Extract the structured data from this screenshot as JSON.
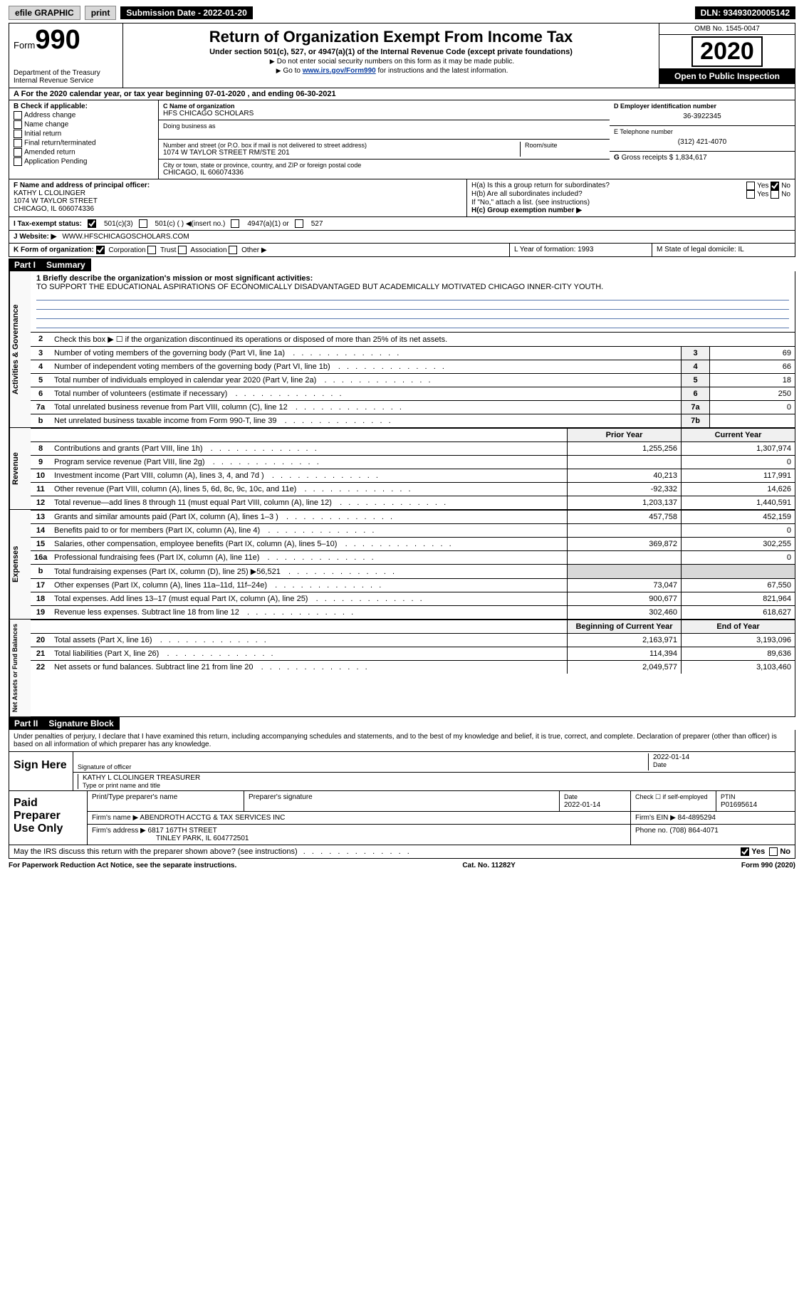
{
  "topbar": {
    "efile": "efile GRAPHIC",
    "print": "print",
    "subdate_label": "Submission Date - 2022-01-20",
    "dln": "DLN: 93493020005142"
  },
  "header": {
    "form_label": "Form",
    "form_number": "990",
    "dept": "Department of the Treasury",
    "irs": "Internal Revenue Service",
    "title": "Return of Organization Exempt From Income Tax",
    "subtitle": "Under section 501(c), 527, or 4947(a)(1) of the Internal Revenue Code (except private foundations)",
    "note1": "Do not enter social security numbers on this form as it may be made public.",
    "note2_pre": "Go to ",
    "note2_link": "www.irs.gov/Form990",
    "note2_post": " for instructions and the latest information.",
    "omb": "OMB No. 1545-0047",
    "year": "2020",
    "inspect": "Open to Public Inspection"
  },
  "lineA": "For the 2020 calendar year, or tax year beginning 07-01-2020   , and ending 06-30-2021",
  "boxB": {
    "label": "B Check if applicable:",
    "opts": [
      "Address change",
      "Name change",
      "Initial return",
      "Final return/terminated",
      "Amended return",
      "Application Pending"
    ]
  },
  "boxC": {
    "label": "C Name of organization",
    "name": "HFS CHICAGO SCHOLARS",
    "dba_label": "Doing business as",
    "addr_label": "Number and street (or P.O. box if mail is not delivered to street address)",
    "addr": "1074 W TAYLOR STREET RM/STE 201",
    "room_label": "Room/suite",
    "city_label": "City or town, state or province, country, and ZIP or foreign postal code",
    "city": "CHICAGO, IL  606074336"
  },
  "boxD": {
    "label": "D Employer identification number",
    "value": "36-3922345"
  },
  "boxE": {
    "label": "E Telephone number",
    "value": "(312) 421-4070"
  },
  "boxG": {
    "label": "G",
    "text": "Gross receipts $ 1,834,617"
  },
  "boxF": {
    "label": "F  Name and address of principal officer:",
    "name": "KATHY L CLOLINGER",
    "addr1": "1074 W TAYLOR STREET",
    "addr2": "CHICAGO, IL  606074336"
  },
  "boxH": {
    "a_label": "H(a)  Is this a group return for subordinates?",
    "b_label": "H(b)  Are all subordinates included?",
    "b_note": "If \"No,\" attach a list. (see instructions)",
    "c_label": "H(c)  Group exemption number ▶",
    "yes": "Yes",
    "no": "No"
  },
  "lineI": {
    "label": "I     Tax-exempt status:",
    "o1": "501(c)(3)",
    "o2": "501(c) (  ) ◀(insert no.)",
    "o3": "4947(a)(1) or",
    "o4": "527"
  },
  "lineJ": {
    "label": "J    Website: ▶",
    "value": "WWW.HFSCHICAGOSCHOLARS.COM"
  },
  "lineK": {
    "label": "K Form of organization:",
    "opts": [
      "Corporation",
      "Trust",
      "Association",
      "Other ▶"
    ]
  },
  "lineL": {
    "label": "L Year of formation: 1993"
  },
  "lineM": {
    "label": "M State of legal domicile: IL"
  },
  "part1": {
    "label": "Part I",
    "title": "Summary"
  },
  "mission": {
    "label": "1   Briefly describe the organization's mission or most significant activities:",
    "text": "TO SUPPORT THE EDUCATIONAL ASPIRATIONS OF ECONOMICALLY DISADVANTAGED BUT ACADEMICALLY MOTIVATED CHICAGO INNER-CITY YOUTH."
  },
  "line2": "Check this box ▶ ☐  if the organization discontinued its operations or disposed of more than 25% of its net assets.",
  "gov_lines": [
    {
      "n": "3",
      "txt": "Number of voting members of the governing body (Part VI, line 1a)",
      "box": "3",
      "v": "69"
    },
    {
      "n": "4",
      "txt": "Number of independent voting members of the governing body (Part VI, line 1b)",
      "box": "4",
      "v": "66"
    },
    {
      "n": "5",
      "txt": "Total number of individuals employed in calendar year 2020 (Part V, line 2a)",
      "box": "5",
      "v": "18"
    },
    {
      "n": "6",
      "txt": "Total number of volunteers (estimate if necessary)",
      "box": "6",
      "v": "250"
    },
    {
      "n": "7a",
      "txt": "Total unrelated business revenue from Part VIII, column (C), line 12",
      "box": "7a",
      "v": "0"
    },
    {
      "n": "b",
      "txt": "Net unrelated business taxable income from Form 990-T, line 39",
      "box": "7b",
      "v": ""
    }
  ],
  "finhdr": {
    "prior": "Prior Year",
    "current": "Current Year"
  },
  "revenue": [
    {
      "n": "8",
      "txt": "Contributions and grants (Part VIII, line 1h)",
      "p": "1,255,256",
      "c": "1,307,974"
    },
    {
      "n": "9",
      "txt": "Program service revenue (Part VIII, line 2g)",
      "p": "",
      "c": "0"
    },
    {
      "n": "10",
      "txt": "Investment income (Part VIII, column (A), lines 3, 4, and 7d )",
      "p": "40,213",
      "c": "117,991"
    },
    {
      "n": "11",
      "txt": "Other revenue (Part VIII, column (A), lines 5, 6d, 8c, 9c, 10c, and 11e)",
      "p": "-92,332",
      "c": "14,626"
    },
    {
      "n": "12",
      "txt": "Total revenue—add lines 8 through 11 (must equal Part VIII, column (A), line 12)",
      "p": "1,203,137",
      "c": "1,440,591"
    }
  ],
  "expenses": [
    {
      "n": "13",
      "txt": "Grants and similar amounts paid (Part IX, column (A), lines 1–3 )",
      "p": "457,758",
      "c": "452,159"
    },
    {
      "n": "14",
      "txt": "Benefits paid to or for members (Part IX, column (A), line 4)",
      "p": "",
      "c": "0"
    },
    {
      "n": "15",
      "txt": "Salaries, other compensation, employee benefits (Part IX, column (A), lines 5–10)",
      "p": "369,872",
      "c": "302,255"
    },
    {
      "n": "16a",
      "txt": "Professional fundraising fees (Part IX, column (A), line 11e)",
      "p": "",
      "c": "0"
    },
    {
      "n": "b",
      "txt": "Total fundraising expenses (Part IX, column (D), line 25) ▶56,521",
      "p": "shade",
      "c": "shade"
    },
    {
      "n": "17",
      "txt": "Other expenses (Part IX, column (A), lines 11a–11d, 11f–24e)",
      "p": "73,047",
      "c": "67,550"
    },
    {
      "n": "18",
      "txt": "Total expenses. Add lines 13–17 (must equal Part IX, column (A), line 25)",
      "p": "900,677",
      "c": "821,964"
    },
    {
      "n": "19",
      "txt": "Revenue less expenses. Subtract line 18 from line 12",
      "p": "302,460",
      "c": "618,627"
    }
  ],
  "nethdr": {
    "b": "Beginning of Current Year",
    "e": "End of Year"
  },
  "netassets": [
    {
      "n": "20",
      "txt": "Total assets (Part X, line 16)",
      "p": "2,163,971",
      "c": "3,193,096"
    },
    {
      "n": "21",
      "txt": "Total liabilities (Part X, line 26)",
      "p": "114,394",
      "c": "89,636"
    },
    {
      "n": "22",
      "txt": "Net assets or fund balances. Subtract line 21 from line 20",
      "p": "2,049,577",
      "c": "3,103,460"
    }
  ],
  "part2": {
    "label": "Part II",
    "title": "Signature Block"
  },
  "penalty": "Under penalties of perjury, I declare that I have examined this return, including accompanying schedules and statements, and to the best of my knowledge and belief, it is true, correct, and complete. Declaration of preparer (other than officer) is based on all information of which preparer has any knowledge.",
  "sign": {
    "label": "Sign Here",
    "sig_label": "Signature of officer",
    "date": "2022-01-14",
    "date_label": "Date",
    "name": "KATHY L CLOLINGER   TREASURER",
    "name_label": "Type or print name and title"
  },
  "preparer": {
    "label": "Paid Preparer Use Only",
    "h1": "Print/Type preparer's name",
    "h2": "Preparer's signature",
    "h3": "Date",
    "h3v": "2022-01-14",
    "h4": "Check ☐ if self-employed",
    "h5": "PTIN",
    "h5v": "P01695614",
    "firm_label": "Firm's name    ▶",
    "firm": "ABENDROTH ACCTG & TAX SERVICES INC",
    "ein_label": "Firm's EIN ▶",
    "ein": "84-4895294",
    "addr_label": "Firm's address ▶",
    "addr1": "6817 167TH STREET",
    "addr2": "TINLEY PARK, IL  604772501",
    "phone_label": "Phone no.",
    "phone": "(708) 864-4071"
  },
  "discuss": {
    "txt": "May the IRS discuss this return with the preparer shown above? (see instructions)",
    "yes": "Yes",
    "no": "No"
  },
  "footer": {
    "left": "For Paperwork Reduction Act Notice, see the separate instructions.",
    "mid": "Cat. No. 11282Y",
    "right": "Form 990 (2020)"
  },
  "vlabels": {
    "gov": "Activities & Governance",
    "rev": "Revenue",
    "exp": "Expenses",
    "net": "Net Assets or Fund Balances"
  }
}
